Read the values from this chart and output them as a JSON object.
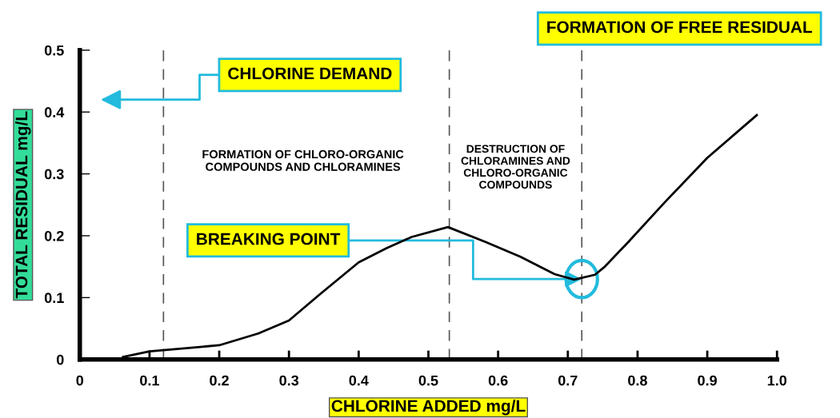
{
  "chart_data": {
    "type": "line",
    "xlabel": "CHLORINE ADDED mg/L",
    "ylabel": "TOTAL RESIDUAL mg/L",
    "series": [
      {
        "color": "#000000",
        "x": [
          0.062,
          0.1,
          0.2,
          0.256,
          0.3,
          0.345,
          0.4,
          0.44,
          0.476,
          0.528,
          0.582,
          0.632,
          0.681,
          0.709,
          0.739,
          0.752,
          0.786,
          0.839,
          0.9,
          0.971
        ],
        "values": [
          0.004,
          0.013,
          0.023,
          0.042,
          0.063,
          0.106,
          0.157,
          0.18,
          0.198,
          0.214,
          0.19,
          0.166,
          0.138,
          0.129,
          0.137,
          0.149,
          0.189,
          0.254,
          0.326,
          0.395
        ]
      }
    ],
    "xlim": [
      0,
      1.0
    ],
    "ylim": [
      0,
      0.5
    ],
    "xticks": [
      0,
      0.1,
      0.2,
      0.3,
      0.4,
      0.5,
      0.6,
      0.7,
      0.8,
      0.9,
      {
        "value": 1.0,
        "label": "1.0"
      }
    ],
    "yticks": [
      0,
      0.1,
      0.2,
      0.3,
      0.4,
      0.5
    ],
    "ref_lines": [
      {
        "axis": "x",
        "value": 0.12,
        "line_style": "dashed",
        "color": "#555555"
      },
      {
        "axis": "x",
        "value": 0.53,
        "line_style": "dashed",
        "color": "#555555"
      },
      {
        "axis": "x",
        "value": 0.72,
        "line_style": "dashed",
        "color": "#555555"
      }
    ],
    "annotations": [
      "CHLORINE DEMAND",
      "FORMATION OF FREE RESIDUAL",
      "FORMATION OF CHLORO-ORGANIC\nCOMPOUNDS AND CHLORAMINES",
      "DESTRUCTION OF\nCHLORAMINES AND\nCHLORO-ORGANIC\nCOMPOUNDS",
      {
        "text": "BREAKING POINT",
        "x": 0.72,
        "y": 0.13
      }
    ],
    "grid": false,
    "legend": false,
    "marker": "none",
    "line_style": "solid"
  }
}
